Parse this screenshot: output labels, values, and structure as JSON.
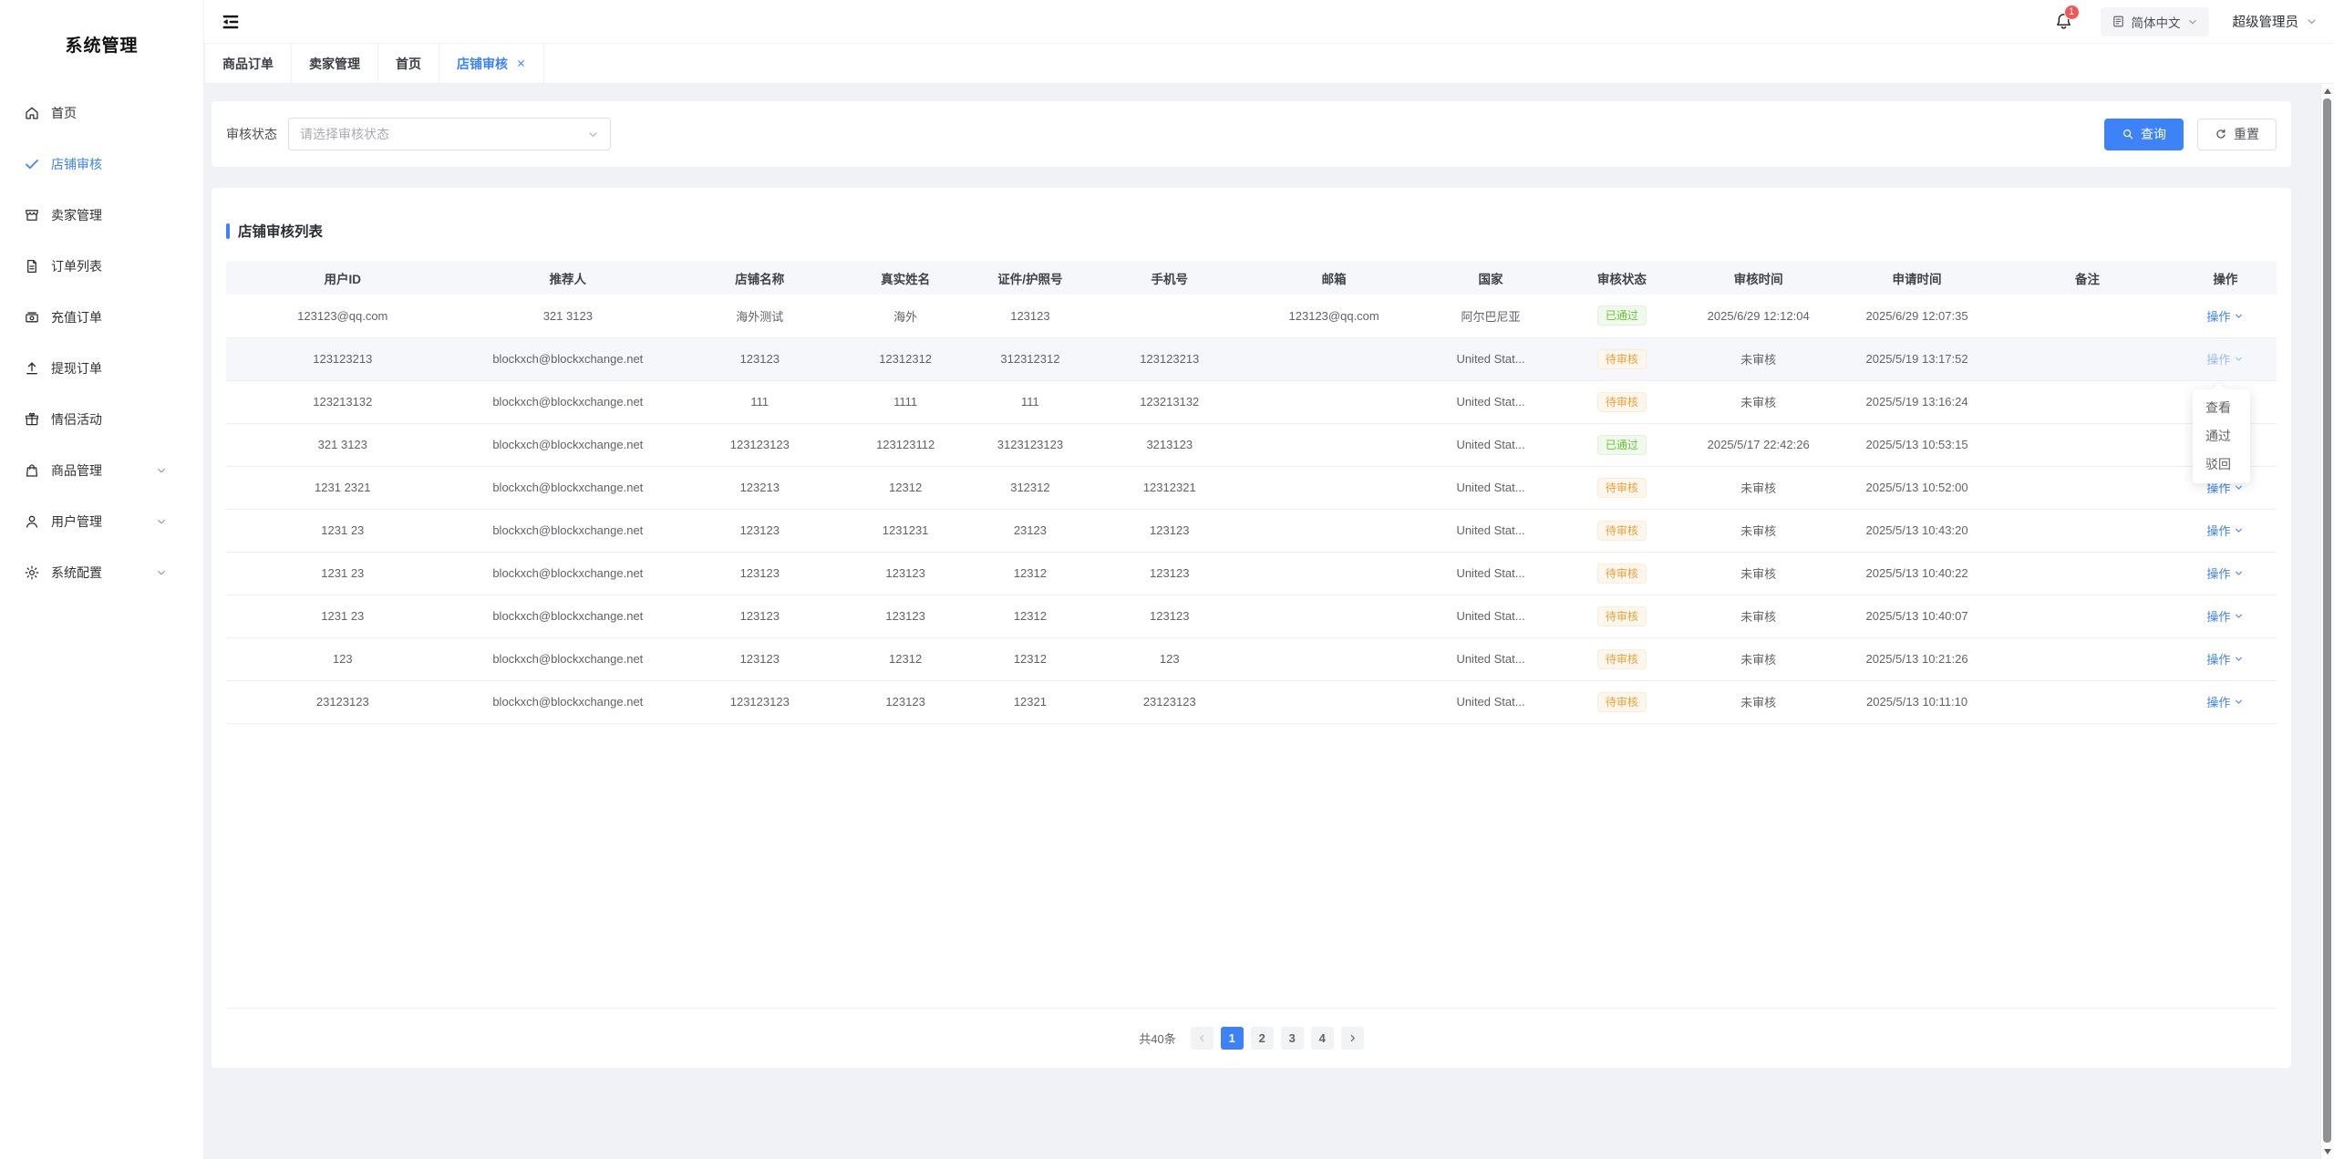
{
  "app": {
    "title": "系统管理"
  },
  "colors": {
    "accent": "#3d82f7",
    "success_text": "#67c23a",
    "success_bg": "#f0f9eb",
    "warning_text": "#e6a23c",
    "warning_bg": "#fdf6ec",
    "badge_red": "#f25555",
    "content_bg": "#f0f2f5"
  },
  "sidebar": {
    "items": [
      {
        "name": "home",
        "icon": "home",
        "label": "首页",
        "active": false,
        "expandable": false
      },
      {
        "name": "store-audit",
        "icon": "check",
        "label": "店铺审核",
        "active": true,
        "expandable": false
      },
      {
        "name": "seller-management",
        "icon": "shop",
        "label": "卖家管理",
        "active": false,
        "expandable": false
      },
      {
        "name": "order-list",
        "icon": "document",
        "label": "订单列表",
        "active": false,
        "expandable": false
      },
      {
        "name": "recharge-orders",
        "icon": "money",
        "label": "充值订单",
        "active": false,
        "expandable": false
      },
      {
        "name": "withdrawal-orders",
        "icon": "upload",
        "label": "提现订单",
        "active": false,
        "expandable": false
      },
      {
        "name": "couple-activities",
        "icon": "gift",
        "label": "情侣活动",
        "active": false,
        "expandable": false
      },
      {
        "name": "product-management",
        "icon": "bag",
        "label": "商品管理",
        "active": false,
        "expandable": true
      },
      {
        "name": "user-management",
        "icon": "user",
        "label": "用户管理",
        "active": false,
        "expandable": true
      },
      {
        "name": "system-config",
        "icon": "gear",
        "label": "系统配置",
        "active": false,
        "expandable": true
      }
    ]
  },
  "header": {
    "bell_badge": "1",
    "language": "简体中文",
    "user": "超级管理员"
  },
  "tabs": [
    {
      "name": "product-orders",
      "label": "商品订单",
      "active": false,
      "closable": false
    },
    {
      "name": "seller-management",
      "label": "卖家管理",
      "active": false,
      "closable": false
    },
    {
      "name": "home",
      "label": "首页",
      "active": false,
      "closable": false
    },
    {
      "name": "store-audit",
      "label": "店铺审核",
      "active": true,
      "closable": true
    }
  ],
  "filter": {
    "label": "审核状态",
    "placeholder": "请选择审核状态",
    "search": "查询",
    "reset": "重置"
  },
  "table": {
    "title": "店铺审核列表",
    "action_label": "操作",
    "columns": [
      "用户ID",
      "推荐人",
      "店铺名称",
      "真实姓名",
      "证件/护照号",
      "手机号",
      "邮箱",
      "国家",
      "审核状态",
      "审核时间",
      "申请时间",
      "备注",
      "操作"
    ],
    "rows": [
      {
        "user_id": "123123@qq.com",
        "referrer": "321 3123",
        "store_name": "海外测试",
        "real_name": "海外",
        "id_number": "123123",
        "phone": "",
        "email": "123123@qq.com",
        "country": "阿尔巴尼亚",
        "status": "已通过",
        "status_type": "success",
        "audit_time": "2025/6/29 12:12:04",
        "apply_time": "2025/6/29 12:07:35",
        "remark": "",
        "highlighted": false,
        "action_dimmed": false
      },
      {
        "user_id": "123123213",
        "referrer": "blockxch@blockxchange.net",
        "store_name": "123123",
        "real_name": "12312312",
        "id_number": "312312312",
        "phone": "123123213",
        "email": "",
        "country": "United Stat...",
        "status": "待审核",
        "status_type": "warning",
        "audit_time": "未审核",
        "apply_time": "2025/5/19 13:17:52",
        "remark": "",
        "highlighted": true,
        "action_dimmed": true
      },
      {
        "user_id": "123213132",
        "referrer": "blockxch@blockxchange.net",
        "store_name": "111",
        "real_name": "1111",
        "id_number": "111",
        "phone": "123213132",
        "email": "",
        "country": "United Stat...",
        "status": "待审核",
        "status_type": "warning",
        "audit_time": "未审核",
        "apply_time": "2025/5/19 13:16:24",
        "remark": "",
        "highlighted": false,
        "action_dimmed": false
      },
      {
        "user_id": "321 3123",
        "referrer": "blockxch@blockxchange.net",
        "store_name": "123123123",
        "real_name": "123123112",
        "id_number": "3123123123",
        "phone": "3213123",
        "email": "",
        "country": "United Stat...",
        "status": "已通过",
        "status_type": "success",
        "audit_time": "2025/5/17 22:42:26",
        "apply_time": "2025/5/13 10:53:15",
        "remark": "",
        "highlighted": false,
        "action_dimmed": false
      },
      {
        "user_id": "1231 2321",
        "referrer": "blockxch@blockxchange.net",
        "store_name": "123213",
        "real_name": "12312",
        "id_number": "312312",
        "phone": "12312321",
        "email": "",
        "country": "United Stat...",
        "status": "待审核",
        "status_type": "warning",
        "audit_time": "未审核",
        "apply_time": "2025/5/13 10:52:00",
        "remark": "",
        "highlighted": false,
        "action_dimmed": false
      },
      {
        "user_id": "1231 23",
        "referrer": "blockxch@blockxchange.net",
        "store_name": "123123",
        "real_name": "1231231",
        "id_number": "23123",
        "phone": "123123",
        "email": "",
        "country": "United Stat...",
        "status": "待审核",
        "status_type": "warning",
        "audit_time": "未审核",
        "apply_time": "2025/5/13 10:43:20",
        "remark": "",
        "highlighted": false,
        "action_dimmed": false
      },
      {
        "user_id": "1231 23",
        "referrer": "blockxch@blockxchange.net",
        "store_name": "123123",
        "real_name": "123123",
        "id_number": "12312",
        "phone": "123123",
        "email": "",
        "country": "United Stat...",
        "status": "待审核",
        "status_type": "warning",
        "audit_time": "未审核",
        "apply_time": "2025/5/13 10:40:22",
        "remark": "",
        "highlighted": false,
        "action_dimmed": false
      },
      {
        "user_id": "1231 23",
        "referrer": "blockxch@blockxchange.net",
        "store_name": "123123",
        "real_name": "123123",
        "id_number": "12312",
        "phone": "123123",
        "email": "",
        "country": "United Stat...",
        "status": "待审核",
        "status_type": "warning",
        "audit_time": "未审核",
        "apply_time": "2025/5/13 10:40:07",
        "remark": "",
        "highlighted": false,
        "action_dimmed": false
      },
      {
        "user_id": "123",
        "referrer": "blockxch@blockxchange.net",
        "store_name": "123123",
        "real_name": "12312",
        "id_number": "12312",
        "phone": "123",
        "email": "",
        "country": "United Stat...",
        "status": "待审核",
        "status_type": "warning",
        "audit_time": "未审核",
        "apply_time": "2025/5/13 10:21:26",
        "remark": "",
        "highlighted": false,
        "action_dimmed": false
      },
      {
        "user_id": "23123123",
        "referrer": "blockxch@blockxchange.net",
        "store_name": "123123123",
        "real_name": "123123",
        "id_number": "12321",
        "phone": "23123123",
        "email": "",
        "country": "United Stat...",
        "status": "待审核",
        "status_type": "warning",
        "audit_time": "未审核",
        "apply_time": "2025/5/13 10:11:10",
        "remark": "",
        "highlighted": false,
        "action_dimmed": false
      }
    ]
  },
  "dropdown": {
    "items": [
      {
        "name": "view",
        "label": "查看"
      },
      {
        "name": "approve",
        "label": "通过"
      },
      {
        "name": "reject",
        "label": "驳回"
      }
    ]
  },
  "pagination": {
    "total": "共40条",
    "pages": [
      "1",
      "2",
      "3",
      "4"
    ],
    "active": "1"
  }
}
